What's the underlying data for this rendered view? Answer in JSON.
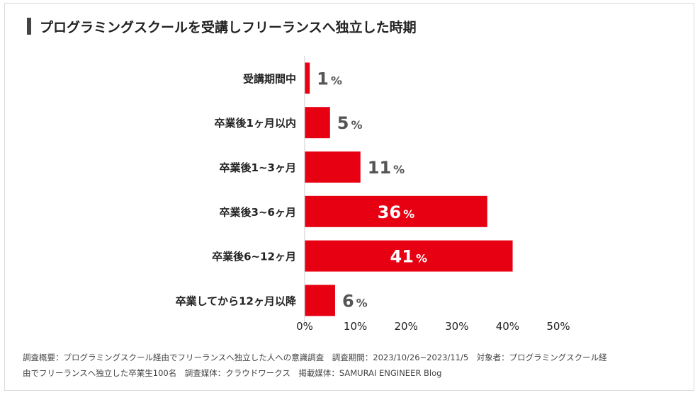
{
  "title": "プログラミングスクールを受講しフリーランスへ独立した時期",
  "chart_data": {
    "type": "bar",
    "orientation": "horizontal",
    "title": "プログラミングスクールを受講しフリーランスへ独立した時期",
    "categories": [
      "受講期間中",
      "卒業後1ヶ月以内",
      "卒業後1~3ヶ月",
      "卒業後3~6ヶ月",
      "卒業後6~12ヶ月",
      "卒業してから12ヶ月以降"
    ],
    "values": [
      1,
      5,
      11,
      36,
      41,
      6
    ],
    "value_suffix": "%",
    "xlim": [
      0,
      50
    ],
    "xticks": [
      "0%",
      "10%",
      "20%",
      "30%",
      "40%",
      "50%"
    ],
    "bar_color": "#e60012",
    "grid": false
  },
  "footnote": {
    "line1": "調査概要：プログラミングスクール経由でフリーランスへ独立した人への意識調査　調査期間：2023/10/26~2023/11/5　対象者：プログラミングスクール経",
    "line2": "由でフリーランスへ独立した卒業生100名　調査媒体：クラウドワークス　掲載媒体：SAMURAI ENGINEER Blog"
  }
}
